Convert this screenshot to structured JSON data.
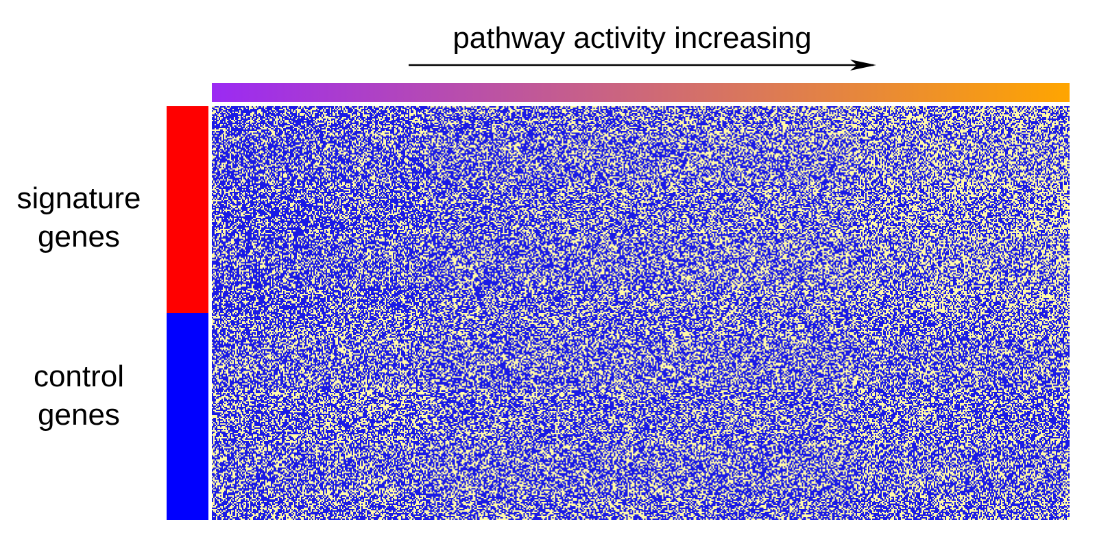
{
  "chart_data": {
    "type": "heatmap",
    "title": "pathway activity increasing",
    "title_arrow": "right",
    "column_annotation": {
      "name": "pathway activity",
      "gradient_start_color": "#9B2AF3",
      "gradient_end_color": "#FFA500",
      "direction": "increasing"
    },
    "row_groups": [
      {
        "label_line1": "signature",
        "label_line2": "genes",
        "color": "#FF0000",
        "fraction": 0.5
      },
      {
        "label_line1": "control",
        "label_line2": "genes",
        "color": "#0000FF",
        "fraction": 0.5
      }
    ],
    "cell_colors": {
      "low": "#1A1AE6",
      "high": "#FFF9A8"
    },
    "n_rows": 300,
    "n_cols": 625,
    "pattern": "random noise; signature genes shift toward high with increasing pathway activity, control genes remain random",
    "xlabel": "",
    "ylabel": ""
  }
}
